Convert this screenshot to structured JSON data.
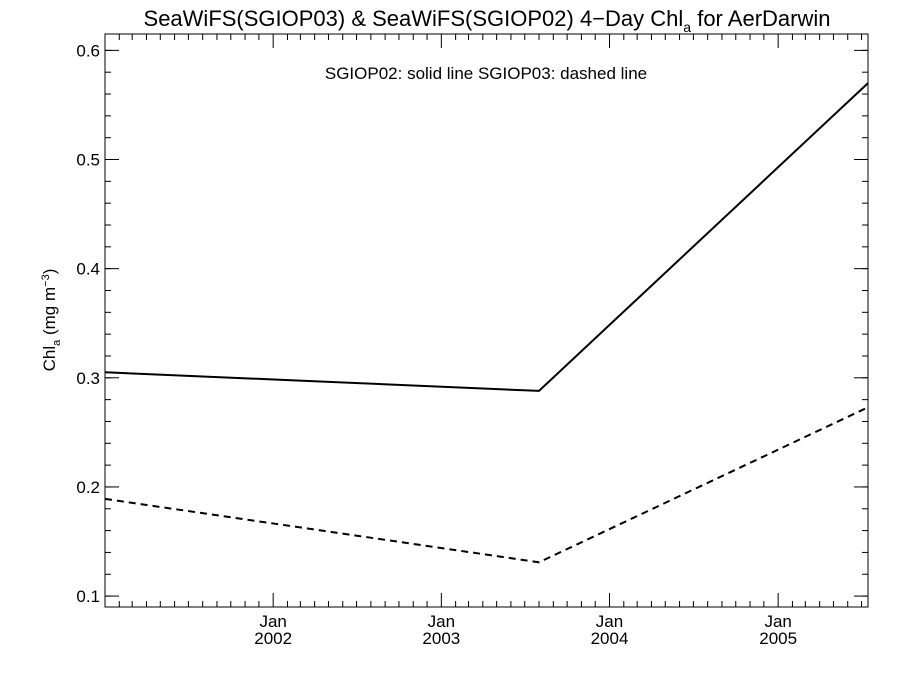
{
  "chart_data": {
    "type": "line",
    "title": {
      "main": "SeaWiFS(SGIOP03) & SeaWiFS(SGIOP02) 4−Day Chl",
      "subscript": "a",
      "suffix": " for AerDarwin"
    },
    "ylabel": {
      "main": "Chl",
      "subscript": "a",
      "unit_open": " (mg m",
      "unit_sup": "−3",
      "unit_close": ")"
    },
    "xlabel": "",
    "legend_text": "SGIOP02: solid line   SGIOP03: dashed line",
    "x_range": [
      "2001-01-01",
      "2005-07-15"
    ],
    "ylim": [
      0.09,
      0.615
    ],
    "y_ticks": [
      {
        "value": 0.1,
        "label": "0.1"
      },
      {
        "value": 0.2,
        "label": "0.2"
      },
      {
        "value": 0.3,
        "label": "0.3"
      },
      {
        "value": 0.4,
        "label": "0.4"
      },
      {
        "value": 0.5,
        "label": "0.5"
      },
      {
        "value": 0.6,
        "label": "0.6"
      }
    ],
    "y_minor_step": 0.02,
    "x_major_ticks": [
      {
        "date": "2002-01-01",
        "month": "Jan",
        "year": "2002"
      },
      {
        "date": "2003-01-01",
        "month": "Jan",
        "year": "2003"
      },
      {
        "date": "2004-01-01",
        "month": "Jan",
        "year": "2004"
      },
      {
        "date": "2005-01-01",
        "month": "Jan",
        "year": "2005"
      }
    ],
    "series": [
      {
        "name": "SGIOP02",
        "line_style": "solid",
        "points": [
          {
            "x": "2001-01-01",
            "y": 0.305
          },
          {
            "x": "2003-08-01",
            "y": 0.288
          },
          {
            "x": "2005-07-15",
            "y": 0.57
          }
        ]
      },
      {
        "name": "SGIOP03",
        "line_style": "dashed",
        "points": [
          {
            "x": "2001-01-01",
            "y": 0.189
          },
          {
            "x": "2003-08-01",
            "y": 0.131
          },
          {
            "x": "2005-07-15",
            "y": 0.273
          }
        ]
      }
    ],
    "grid": false,
    "legend_position": "top-center",
    "color": "#000000"
  }
}
